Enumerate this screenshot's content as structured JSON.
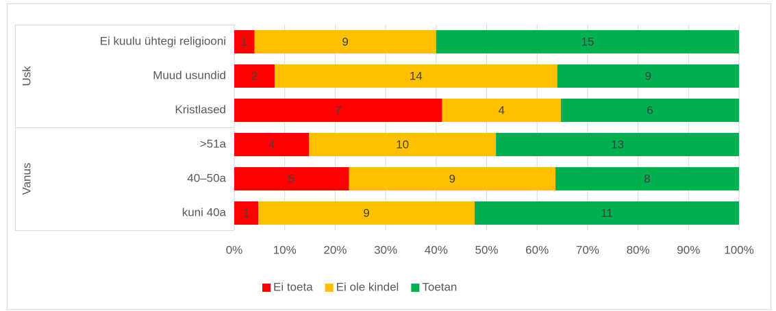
{
  "chart_data": {
    "type": "bar",
    "orientation": "horizontal",
    "stacking": "percent",
    "category_groups": [
      {
        "name": "Usk",
        "categories": [
          "Ei kuulu ühtegi religiooni",
          "Muud usundid",
          "Kristlased"
        ]
      },
      {
        "name": "Vanus",
        "categories": [
          ">51a",
          "40–50a",
          "kuni 40a"
        ]
      }
    ],
    "series": [
      {
        "name": "Ei toeta",
        "color": "#ff0000",
        "values": [
          1,
          2,
          7,
          4,
          5,
          1
        ]
      },
      {
        "name": "Ei ole kindel",
        "color": "#ffc000",
        "values": [
          9,
          14,
          4,
          10,
          9,
          9
        ]
      },
      {
        "name": "Toetan",
        "color": "#00b050",
        "values": [
          15,
          9,
          6,
          13,
          8,
          11
        ]
      }
    ],
    "xlim": [
      0,
      100
    ],
    "xticks": [
      {
        "value": 0,
        "label": "0%"
      },
      {
        "value": 10,
        "label": "10%"
      },
      {
        "value": 20,
        "label": "20%"
      },
      {
        "value": 30,
        "label": "30%"
      },
      {
        "value": 40,
        "label": "40%"
      },
      {
        "value": 50,
        "label": "50%"
      },
      {
        "value": 60,
        "label": "60%"
      },
      {
        "value": 70,
        "label": "70%"
      },
      {
        "value": 80,
        "label": "80%"
      },
      {
        "value": 90,
        "label": "90%"
      },
      {
        "value": 100,
        "label": "100%"
      }
    ],
    "grid": true,
    "legend": "bottom"
  }
}
